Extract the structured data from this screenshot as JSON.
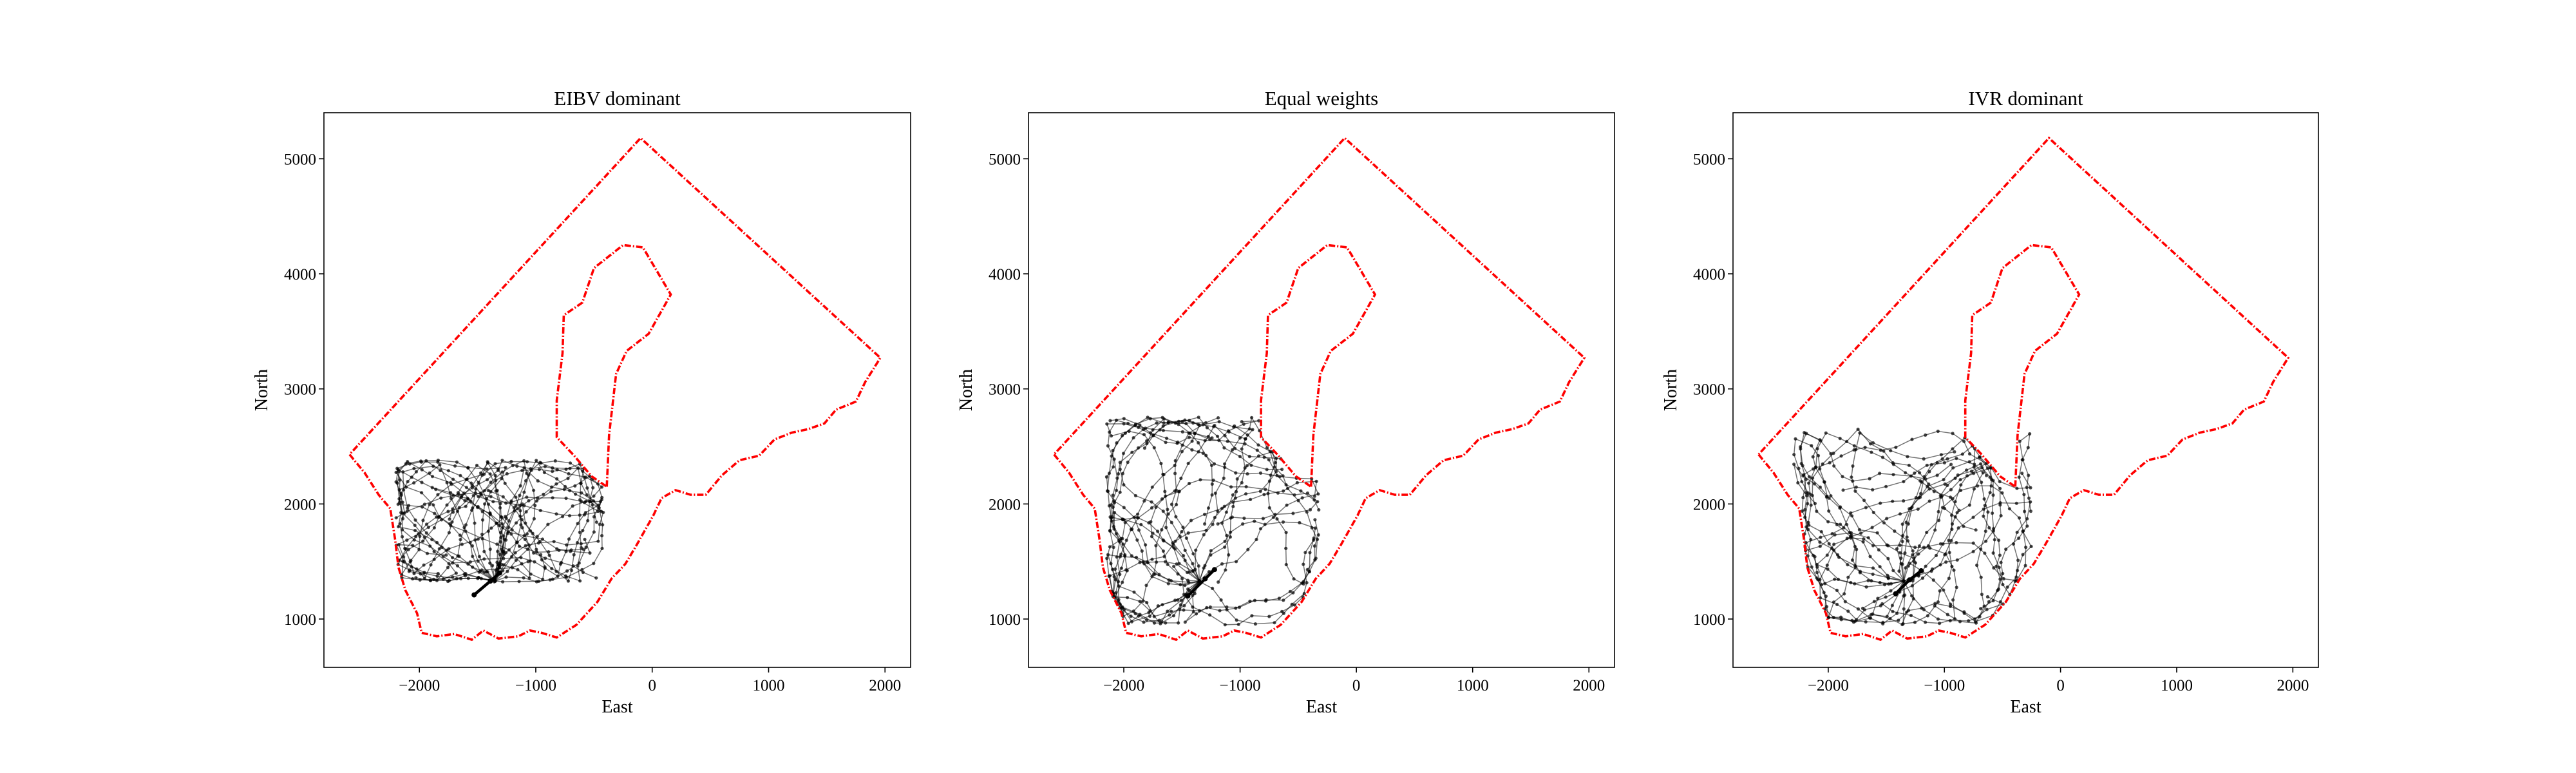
{
  "figure": {
    "background": "#ffffff"
  },
  "chart_data": [
    {
      "type": "scatter",
      "title": "EIBV dominant",
      "xlabel": "East",
      "ylabel": "North",
      "xlim": [
        -2820,
        2220
      ],
      "ylim": [
        580,
        5400
      ],
      "xticks": [
        "−2000",
        "−1000",
        "0",
        "1000",
        "2000"
      ],
      "yticks": [
        "1000",
        "2000",
        "3000",
        "4000",
        "5000"
      ],
      "grid": false,
      "boundary_color": "#ff0000",
      "path_color": "#000000",
      "outer_boundary": [
        [
          -2600,
          2430
        ],
        [
          -2470,
          2270
        ],
        [
          -2350,
          2080
        ],
        [
          -2250,
          1960
        ],
        [
          -2210,
          1700
        ],
        [
          -2180,
          1450
        ],
        [
          -2120,
          1250
        ],
        [
          -2020,
          1050
        ],
        [
          -1980,
          880
        ],
        [
          -1850,
          850
        ],
        [
          -1700,
          870
        ],
        [
          -1550,
          820
        ],
        [
          -1450,
          900
        ],
        [
          -1320,
          830
        ],
        [
          -1150,
          850
        ],
        [
          -1050,
          900
        ],
        [
          -950,
          880
        ],
        [
          -820,
          840
        ],
        [
          -650,
          950
        ],
        [
          -470,
          1150
        ],
        [
          -350,
          1350
        ],
        [
          -230,
          1480
        ],
        [
          -130,
          1650
        ],
        [
          10,
          1900
        ],
        [
          80,
          2050
        ],
        [
          200,
          2120
        ],
        [
          330,
          2080
        ],
        [
          460,
          2080
        ],
        [
          600,
          2250
        ],
        [
          750,
          2380
        ],
        [
          920,
          2420
        ],
        [
          1050,
          2560
        ],
        [
          1200,
          2620
        ],
        [
          1340,
          2650
        ],
        [
          1480,
          2700
        ],
        [
          1580,
          2820
        ],
        [
          1750,
          2890
        ],
        [
          1830,
          3060
        ],
        [
          1960,
          3270
        ],
        [
          -100,
          5180
        ],
        [
          -2600,
          2430
        ]
      ],
      "inner_boundary": [
        [
          -390,
          2150
        ],
        [
          -370,
          2600
        ],
        [
          -310,
          3130
        ],
        [
          -220,
          3330
        ],
        [
          -30,
          3480
        ],
        [
          160,
          3820
        ],
        [
          -80,
          4230
        ],
        [
          -250,
          4250
        ],
        [
          -500,
          4050
        ],
        [
          -600,
          3750
        ],
        [
          -760,
          3640
        ],
        [
          -770,
          3310
        ],
        [
          -820,
          2900
        ],
        [
          -820,
          2580
        ],
        [
          -680,
          2430
        ],
        [
          -520,
          2240
        ],
        [
          -390,
          2150
        ]
      ],
      "trajectories": {
        "count": 20,
        "steps": 26,
        "spread": 0.42,
        "bias": 1,
        "seed": 11
      },
      "highlight": [
        [
          -1530,
          1210
        ],
        [
          -1390,
          1330
        ],
        [
          -1310,
          1400
        ]
      ]
    },
    {
      "type": "scatter",
      "title": "Equal weights",
      "xlabel": "East",
      "ylabel": "North",
      "xlim": [
        -2820,
        2220
      ],
      "ylim": [
        580,
        5400
      ],
      "xticks": [
        "−2000",
        "−1000",
        "0",
        "1000",
        "2000"
      ],
      "yticks": [
        "1000",
        "2000",
        "3000",
        "4000",
        "5000"
      ],
      "grid": false,
      "boundary_color": "#ff0000",
      "path_color": "#000000",
      "outer_boundary": [
        [
          -2600,
          2430
        ],
        [
          -2470,
          2270
        ],
        [
          -2350,
          2080
        ],
        [
          -2250,
          1960
        ],
        [
          -2210,
          1700
        ],
        [
          -2180,
          1450
        ],
        [
          -2120,
          1250
        ],
        [
          -2020,
          1050
        ],
        [
          -1980,
          880
        ],
        [
          -1850,
          850
        ],
        [
          -1700,
          870
        ],
        [
          -1550,
          820
        ],
        [
          -1450,
          900
        ],
        [
          -1320,
          830
        ],
        [
          -1150,
          850
        ],
        [
          -1050,
          900
        ],
        [
          -950,
          880
        ],
        [
          -820,
          840
        ],
        [
          -650,
          950
        ],
        [
          -470,
          1150
        ],
        [
          -350,
          1350
        ],
        [
          -230,
          1480
        ],
        [
          -130,
          1650
        ],
        [
          10,
          1900
        ],
        [
          80,
          2050
        ],
        [
          200,
          2120
        ],
        [
          330,
          2080
        ],
        [
          460,
          2080
        ],
        [
          600,
          2250
        ],
        [
          750,
          2380
        ],
        [
          920,
          2420
        ],
        [
          1050,
          2560
        ],
        [
          1200,
          2620
        ],
        [
          1340,
          2650
        ],
        [
          1480,
          2700
        ],
        [
          1580,
          2820
        ],
        [
          1750,
          2890
        ],
        [
          1830,
          3060
        ],
        [
          1960,
          3270
        ],
        [
          -100,
          5180
        ],
        [
          -2600,
          2430
        ]
      ],
      "inner_boundary": [
        [
          -390,
          2150
        ],
        [
          -370,
          2600
        ],
        [
          -310,
          3130
        ],
        [
          -220,
          3330
        ],
        [
          -30,
          3480
        ],
        [
          160,
          3820
        ],
        [
          -80,
          4230
        ],
        [
          -250,
          4250
        ],
        [
          -500,
          4050
        ],
        [
          -600,
          3750
        ],
        [
          -760,
          3640
        ],
        [
          -770,
          3310
        ],
        [
          -820,
          2900
        ],
        [
          -820,
          2580
        ],
        [
          -680,
          2430
        ],
        [
          -520,
          2240
        ],
        [
          -390,
          2150
        ]
      ],
      "trajectories": {
        "count": 20,
        "steps": 26,
        "spread": 0.62,
        "bias": 2,
        "seed": 23
      },
      "highlight": [
        [
          -1450,
          1200
        ],
        [
          -1300,
          1350
        ],
        [
          -1220,
          1430
        ]
      ]
    },
    {
      "type": "scatter",
      "title": "IVR dominant",
      "xlabel": "East",
      "ylabel": "North",
      "xlim": [
        -2820,
        2220
      ],
      "ylim": [
        580,
        5400
      ],
      "xticks": [
        "−2000",
        "−1000",
        "0",
        "1000",
        "2000"
      ],
      "yticks": [
        "1000",
        "2000",
        "3000",
        "4000",
        "5000"
      ],
      "grid": false,
      "boundary_color": "#ff0000",
      "path_color": "#000000",
      "outer_boundary": [
        [
          -2600,
          2430
        ],
        [
          -2470,
          2270
        ],
        [
          -2350,
          2080
        ],
        [
          -2250,
          1960
        ],
        [
          -2210,
          1700
        ],
        [
          -2180,
          1450
        ],
        [
          -2120,
          1250
        ],
        [
          -2020,
          1050
        ],
        [
          -1980,
          880
        ],
        [
          -1850,
          850
        ],
        [
          -1700,
          870
        ],
        [
          -1550,
          820
        ],
        [
          -1450,
          900
        ],
        [
          -1320,
          830
        ],
        [
          -1150,
          850
        ],
        [
          -1050,
          900
        ],
        [
          -950,
          880
        ],
        [
          -820,
          840
        ],
        [
          -650,
          950
        ],
        [
          -470,
          1150
        ],
        [
          -350,
          1350
        ],
        [
          -230,
          1480
        ],
        [
          -130,
          1650
        ],
        [
          10,
          1900
        ],
        [
          80,
          2050
        ],
        [
          200,
          2120
        ],
        [
          330,
          2080
        ],
        [
          460,
          2080
        ],
        [
          600,
          2250
        ],
        [
          750,
          2380
        ],
        [
          920,
          2420
        ],
        [
          1050,
          2560
        ],
        [
          1200,
          2620
        ],
        [
          1340,
          2650
        ],
        [
          1480,
          2700
        ],
        [
          1580,
          2820
        ],
        [
          1750,
          2890
        ],
        [
          1830,
          3060
        ],
        [
          1960,
          3270
        ],
        [
          -100,
          5180
        ],
        [
          -2600,
          2430
        ]
      ],
      "inner_boundary": [
        [
          -390,
          2150
        ],
        [
          -370,
          2600
        ],
        [
          -310,
          3130
        ],
        [
          -220,
          3330
        ],
        [
          -30,
          3480
        ],
        [
          160,
          3820
        ],
        [
          -80,
          4230
        ],
        [
          -250,
          4250
        ],
        [
          -500,
          4050
        ],
        [
          -600,
          3750
        ],
        [
          -760,
          3640
        ],
        [
          -770,
          3310
        ],
        [
          -820,
          2900
        ],
        [
          -820,
          2580
        ],
        [
          -680,
          2430
        ],
        [
          -520,
          2240
        ],
        [
          -390,
          2150
        ]
      ],
      "trajectories": {
        "count": 20,
        "steps": 26,
        "spread": 0.6,
        "bias": 3,
        "seed": 37
      },
      "highlight": [
        [
          -1420,
          1220
        ],
        [
          -1300,
          1340
        ],
        [
          -1200,
          1420
        ]
      ]
    }
  ]
}
